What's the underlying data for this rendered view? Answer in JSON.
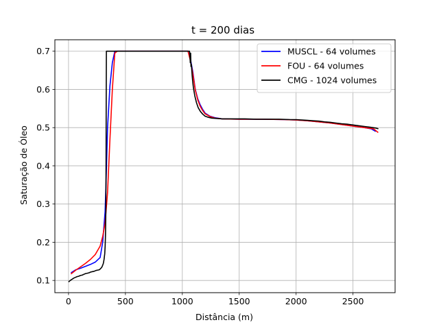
{
  "chart_data": {
    "type": "line",
    "title": "t = 200 dias",
    "xlabel": "Distância (m)",
    "ylabel": "Saturação de Óleo",
    "xlim": [
      -120,
      2870
    ],
    "ylim": [
      0.068,
      0.73
    ],
    "xticks": [
      0,
      500,
      1000,
      1500,
      2000,
      2500
    ],
    "yticks": [
      0.1,
      0.2,
      0.3,
      0.4,
      0.5,
      0.6,
      0.7
    ],
    "xtick_labels": [
      "0",
      "500",
      "1000",
      "1500",
      "2000",
      "2500"
    ],
    "ytick_labels": [
      "0.1",
      "0.2",
      "0.3",
      "0.4",
      "0.5",
      "0.6",
      "0.7"
    ],
    "grid": true,
    "legend_position": "top-right",
    "series": [
      {
        "name": "MUSCL - 64 volumes",
        "color": "#0000ff",
        "x": [
          21,
          64,
          107,
          150,
          192,
          235,
          278,
          300,
          321,
          332,
          343,
          364,
          385,
          407,
          428,
          1050,
          1071,
          1093,
          1114,
          1136,
          1157,
          1178,
          1200,
          1243,
          1285,
          1350,
          1500,
          1700,
          1900,
          2000,
          2100,
          2200,
          2300,
          2400,
          2500,
          2600,
          2660,
          2700
        ],
        "y": [
          0.12,
          0.128,
          0.132,
          0.137,
          0.142,
          0.148,
          0.16,
          0.2,
          0.28,
          0.38,
          0.5,
          0.61,
          0.67,
          0.7,
          0.7,
          0.7,
          0.68,
          0.645,
          0.6,
          0.575,
          0.56,
          0.548,
          0.538,
          0.53,
          0.526,
          0.523,
          0.522,
          0.522,
          0.521,
          0.52,
          0.518,
          0.515,
          0.512,
          0.508,
          0.504,
          0.5,
          0.497,
          0.49
        ]
      },
      {
        "name": "FOU - 64 volumes",
        "color": "#ff0000",
        "x": [
          21,
          64,
          107,
          150,
          192,
          235,
          278,
          300,
          321,
          343,
          364,
          385,
          407,
          428,
          1050,
          1071,
          1093,
          1114,
          1136,
          1157,
          1178,
          1200,
          1243,
          1285,
          1350,
          1500,
          1700,
          1900,
          2000,
          2100,
          2200,
          2300,
          2400,
          2500,
          2600,
          2680,
          2722
        ],
        "y": [
          0.117,
          0.127,
          0.136,
          0.145,
          0.155,
          0.168,
          0.19,
          0.215,
          0.25,
          0.33,
          0.47,
          0.6,
          0.695,
          0.7,
          0.7,
          0.675,
          0.64,
          0.598,
          0.572,
          0.556,
          0.545,
          0.536,
          0.529,
          0.525,
          0.523,
          0.522,
          0.522,
          0.521,
          0.52,
          0.518,
          0.515,
          0.512,
          0.508,
          0.504,
          0.5,
          0.497,
          0.487
        ]
      },
      {
        "name": "CMG - 1024 volumes",
        "color": "#000000",
        "x": [
          0,
          15,
          30,
          45,
          60,
          75,
          90,
          105,
          120,
          135,
          150,
          165,
          180,
          195,
          210,
          225,
          240,
          255,
          270,
          282,
          293,
          300,
          306,
          312,
          318,
          322,
          325,
          328,
          330,
          331,
          332,
          333,
          1060,
          1063,
          1066,
          1070,
          1073,
          1076,
          1080,
          1083,
          1087,
          1090,
          1095,
          1100,
          1110,
          1125,
          1140,
          1160,
          1180,
          1200,
          1230,
          1260,
          1300,
          1350,
          1450,
          1550,
          1650,
          1750,
          1850,
          1950,
          2000,
          2050,
          2100,
          2150,
          2200,
          2250,
          2300,
          2350,
          2400,
          2450,
          2500,
          2550,
          2600,
          2650,
          2700,
          2723
        ],
        "y": [
          0.096,
          0.1,
          0.103,
          0.106,
          0.108,
          0.11,
          0.111,
          0.113,
          0.114,
          0.116,
          0.118,
          0.119,
          0.12,
          0.122,
          0.123,
          0.124,
          0.126,
          0.127,
          0.128,
          0.131,
          0.135,
          0.14,
          0.145,
          0.155,
          0.17,
          0.19,
          0.22,
          0.28,
          0.4,
          0.55,
          0.65,
          0.7,
          0.7,
          0.7,
          0.695,
          0.67,
          0.695,
          0.66,
          0.665,
          0.65,
          0.635,
          0.625,
          0.61,
          0.6,
          0.583,
          0.565,
          0.552,
          0.542,
          0.535,
          0.53,
          0.527,
          0.525,
          0.524,
          0.523,
          0.523,
          0.523,
          0.522,
          0.522,
          0.522,
          0.521,
          0.521,
          0.52,
          0.519,
          0.518,
          0.517,
          0.515,
          0.514,
          0.512,
          0.51,
          0.509,
          0.507,
          0.505,
          0.503,
          0.501,
          0.499,
          0.497
        ]
      }
    ]
  }
}
